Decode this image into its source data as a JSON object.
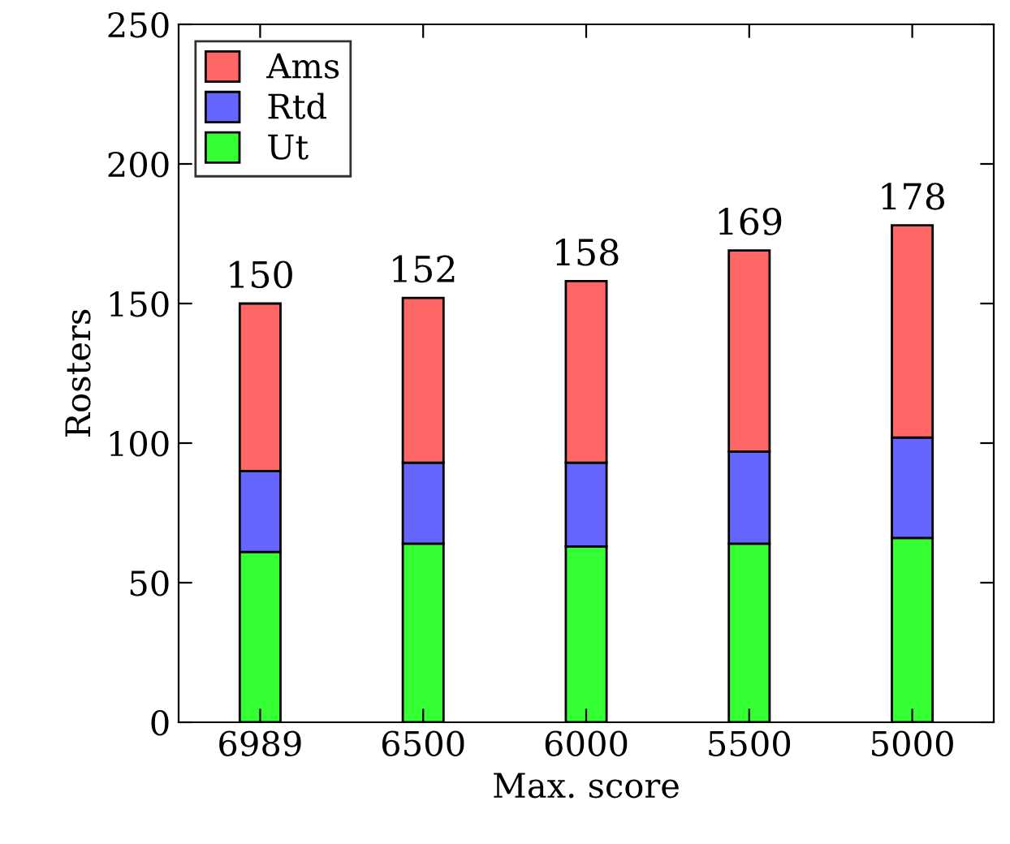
{
  "chart_data": {
    "type": "bar",
    "stacked": true,
    "xlabel": "Max. score",
    "ylabel": "Rosters",
    "categories": [
      "6989",
      "6500",
      "6000",
      "5500",
      "5000"
    ],
    "series": [
      {
        "name": "Ut",
        "color": "#33ff33",
        "values": [
          61,
          64,
          63,
          64,
          66
        ]
      },
      {
        "name": "Rtd",
        "color": "#6666ff",
        "values": [
          29,
          29,
          30,
          33,
          36
        ]
      },
      {
        "name": "Ams",
        "color": "#ff6666",
        "values": [
          60,
          59,
          65,
          72,
          76
        ]
      }
    ],
    "totals": [
      "150",
      "152",
      "158",
      "169",
      "178"
    ],
    "ylim": [
      0,
      250
    ],
    "yticks": [
      0,
      50,
      100,
      150,
      200,
      250
    ],
    "grid": false,
    "legend": "top left"
  }
}
